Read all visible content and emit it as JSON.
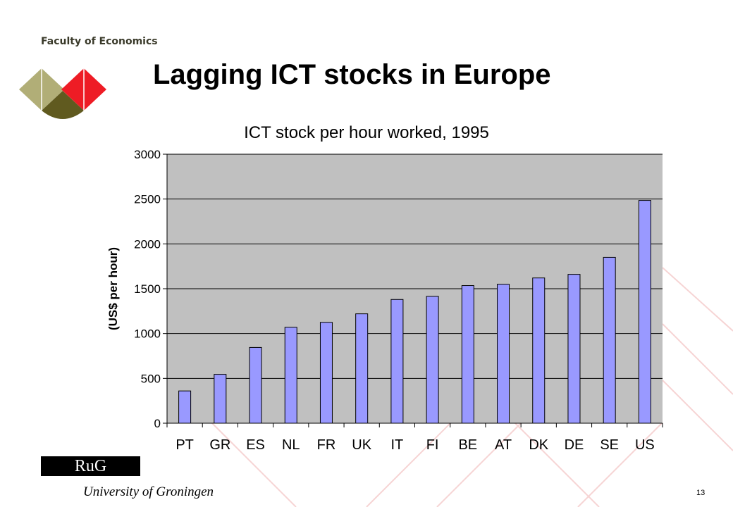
{
  "header": {
    "faculty": "Faculty of Economics",
    "title": "Lagging ICT stocks in Europe"
  },
  "footer": {
    "badge": "RuG",
    "university": "University of Groningen",
    "page_number": "13"
  },
  "colors": {
    "plot_background": "#c0c0c0",
    "bar_fill": "#9999ff",
    "logo_olive_light": "#b1ae77",
    "logo_olive_dark": "#605a1f",
    "logo_red": "#ee1c25"
  },
  "chart_data": {
    "type": "bar",
    "title": "ICT stock per hour worked, 1995",
    "ylabel": "(US$ per hour)",
    "xlabel": "",
    "ylim": [
      0,
      3000
    ],
    "yticks": [
      0,
      500,
      1000,
      1500,
      2000,
      2500,
      3000
    ],
    "grid": true,
    "legend": "none",
    "categories": [
      "PT",
      "GR",
      "ES",
      "NL",
      "FR",
      "UK",
      "IT",
      "FI",
      "BE",
      "AT",
      "DK",
      "DE",
      "SE",
      "US"
    ],
    "values": [
      360,
      545,
      845,
      1070,
      1125,
      1220,
      1380,
      1415,
      1535,
      1550,
      1620,
      1660,
      1850,
      2485
    ]
  }
}
